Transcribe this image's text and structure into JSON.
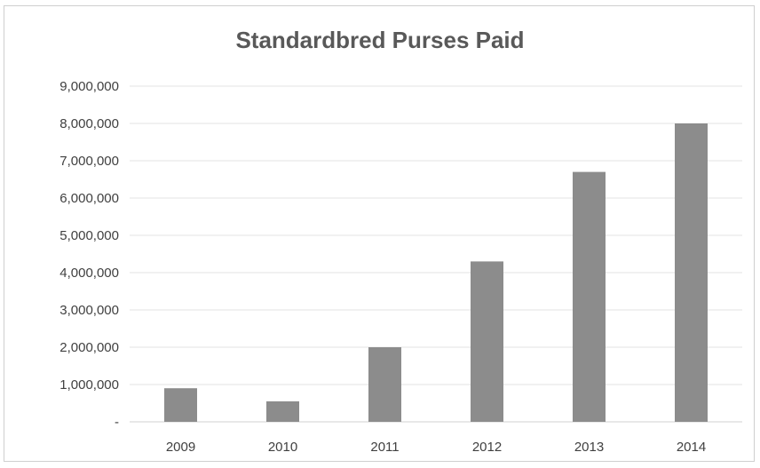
{
  "chart_data": {
    "type": "bar",
    "title": "Standardbred Purses Paid",
    "xlabel": "",
    "ylabel": "",
    "categories": [
      "2009",
      "2010",
      "2011",
      "2012",
      "2013",
      "2014"
    ],
    "values": [
      900000,
      550000,
      2000000,
      4300000,
      6700000,
      8000000
    ],
    "ylim": [
      0,
      9000000
    ],
    "yticks": [
      0,
      1000000,
      2000000,
      3000000,
      4000000,
      5000000,
      6000000,
      7000000,
      8000000,
      9000000
    ],
    "ytick_labels": [
      "-",
      "1,000,000",
      "2,000,000",
      "3,000,000",
      "4,000,000",
      "5,000,000",
      "6,000,000",
      "7,000,000",
      "8,000,000",
      "9,000,000"
    ],
    "grid": true,
    "legend": "none",
    "colors": {
      "bar": "#8c8c8c",
      "grid": "#e3e3e3",
      "axis": "#d0d0d0",
      "title": "#595959",
      "text": "#404040"
    }
  }
}
